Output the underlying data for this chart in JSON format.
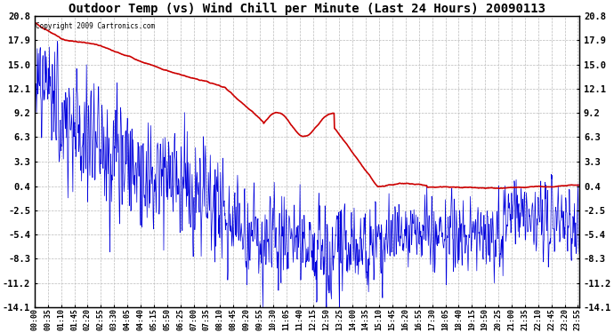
{
  "title": "Outdoor Temp (vs) Wind Chill per Minute (Last 24 Hours) 20090113",
  "copyright_text": "Copyright 2009 Cartronics.com",
  "yticks": [
    20.8,
    17.9,
    15.0,
    12.1,
    9.2,
    6.3,
    3.3,
    0.4,
    -2.5,
    -5.4,
    -8.3,
    -11.2,
    -14.1
  ],
  "ylim": [
    -14.1,
    20.8
  ],
  "xlim": [
    0,
    1439
  ],
  "background_color": "#ffffff",
  "grid_color": "#bbbbbb",
  "title_fontsize": 10,
  "tick_fontsize": 7.5,
  "outdoor_color": "#cc0000",
  "windchill_color": "#0000dd",
  "xtick_labels": [
    "00:00",
    "00:35",
    "01:10",
    "01:45",
    "02:20",
    "02:55",
    "03:30",
    "04:05",
    "04:40",
    "05:15",
    "05:50",
    "06:25",
    "07:00",
    "07:35",
    "08:10",
    "08:45",
    "09:20",
    "09:55",
    "10:30",
    "11:05",
    "11:40",
    "12:15",
    "12:50",
    "13:25",
    "14:00",
    "14:35",
    "15:10",
    "15:45",
    "16:20",
    "16:55",
    "17:30",
    "18:05",
    "18:40",
    "19:15",
    "19:50",
    "20:25",
    "21:00",
    "21:35",
    "22:10",
    "22:45",
    "23:20",
    "23:55"
  ]
}
